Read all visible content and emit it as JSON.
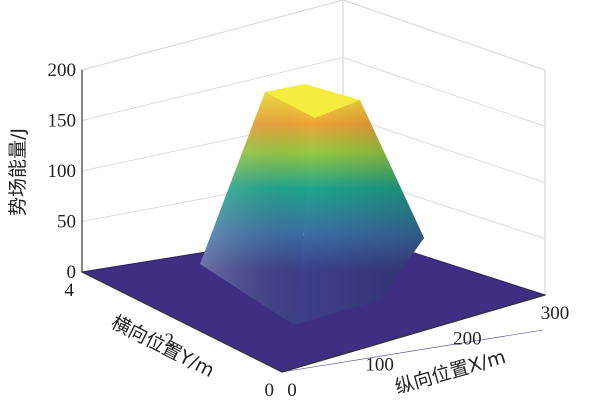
{
  "chart_data": {
    "type": "surface3d",
    "title": "",
    "xlabel": "纵向位置X/m",
    "ylabel": "横向位置Y/m",
    "zlabel": "势场能量/J",
    "xlim": [
      0,
      300
    ],
    "ylim": [
      0,
      4
    ],
    "zlim": [
      0,
      200
    ],
    "x_ticks": [
      "0",
      "100",
      "200",
      "300"
    ],
    "y_ticks": [
      "0",
      "2",
      "4"
    ],
    "z_ticks": [
      "0",
      "50",
      "100",
      "150",
      "200"
    ],
    "grid": true,
    "colormap": "viridis",
    "surface": {
      "shape": "truncated pyramid",
      "peak_value": 190,
      "base_value": 0,
      "base_x_range": [
        80,
        220
      ],
      "base_y_range": [
        0.9,
        3.3
      ],
      "top_x_range": [
        135,
        165
      ],
      "top_y_range": [
        1.85,
        2.35
      ]
    }
  }
}
